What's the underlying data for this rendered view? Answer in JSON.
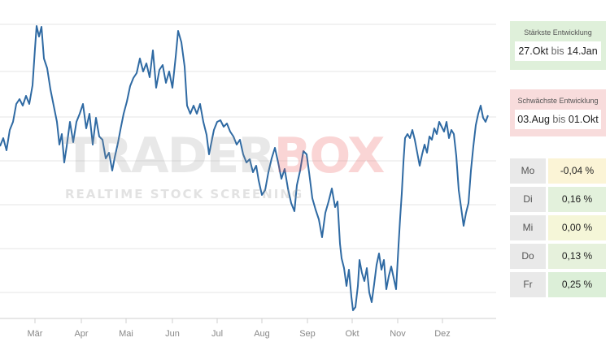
{
  "chart": {
    "x_labels": [
      "Mär",
      "Apr",
      "Mai",
      "Jun",
      "Jul",
      "Aug",
      "Sep",
      "Okt",
      "Nov",
      "Dez"
    ],
    "line_color": "#2f6aa3",
    "grid_color": "#e6e6e6"
  },
  "watermark": {
    "word_trader": "TRADER",
    "word_box": "BOX",
    "tagline": "REALTIME STOCK SCREENING"
  },
  "best": {
    "title": "Stärkste Entwicklung",
    "from": "27.Okt",
    "sep": "bis",
    "to": "14.Jan",
    "color": "#dff0da"
  },
  "worst": {
    "title": "Schwächste Entwicklung",
    "from": "03.Aug",
    "sep": "bis",
    "to": "01.Okt",
    "color": "#f8dcdc"
  },
  "weekdays": [
    {
      "day": "Mo",
      "value": "-0,04 %",
      "color": "#fbf4d6"
    },
    {
      "day": "Di",
      "value": "0,16 %",
      "color": "#e3f1dc"
    },
    {
      "day": "Mi",
      "value": "0,00 %",
      "color": "#f5f6d8"
    },
    {
      "day": "Do",
      "value": "0,13 %",
      "color": "#e6f1dc"
    },
    {
      "day": "Fr",
      "value": "0,25 %",
      "color": "#dcefd8"
    }
  ]
}
